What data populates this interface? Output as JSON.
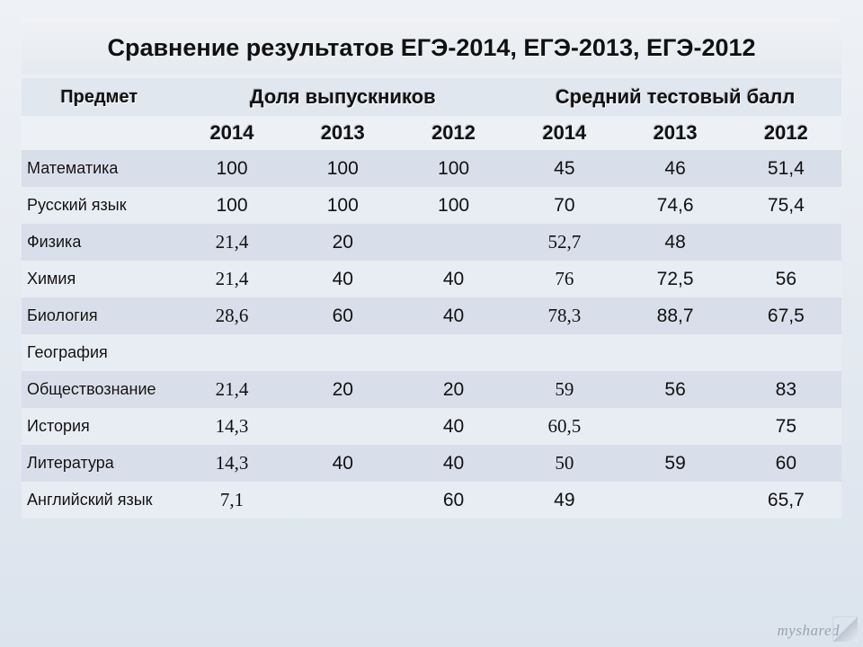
{
  "title": "Сравнение результатов ЕГЭ-2014, ЕГЭ-2013, ЕГЭ-2012",
  "headers": {
    "subject": "Предмет",
    "group1": "Доля выпускников",
    "group2": "Средний тестовый балл",
    "years": [
      "2014",
      "2013",
      "2012",
      "2014",
      "2013",
      "2012"
    ]
  },
  "rows": [
    {
      "subject": "Математика",
      "v": [
        "100",
        "100",
        "100",
        "45",
        "46",
        "51,4"
      ],
      "serif": [
        0,
        0,
        0,
        0,
        0,
        0
      ]
    },
    {
      "subject": "Русский язык",
      "v": [
        "100",
        "100",
        "100",
        "70",
        "74,6",
        "75,4"
      ],
      "serif": [
        0,
        0,
        0,
        0,
        0,
        0
      ]
    },
    {
      "subject": "Физика",
      "v": [
        "21,4",
        "20",
        "",
        "52,7",
        "48",
        ""
      ],
      "serif": [
        1,
        0,
        0,
        1,
        0,
        0
      ]
    },
    {
      "subject": "Химия",
      "v": [
        "21,4",
        "40",
        "40",
        "76",
        "72,5",
        "56"
      ],
      "serif": [
        1,
        0,
        0,
        1,
        0,
        0
      ]
    },
    {
      "subject": "Биология",
      "v": [
        "28,6",
        "60",
        "40",
        "78,3",
        "88,7",
        "67,5"
      ],
      "serif": [
        1,
        0,
        0,
        1,
        0,
        0
      ]
    },
    {
      "subject": "География",
      "v": [
        "",
        "",
        "",
        "",
        "",
        ""
      ],
      "serif": [
        0,
        0,
        0,
        0,
        0,
        0
      ]
    },
    {
      "subject": "Обществознание",
      "v": [
        "21,4",
        "20",
        "20",
        "59",
        "56",
        "83"
      ],
      "serif": [
        1,
        0,
        0,
        1,
        0,
        0
      ]
    },
    {
      "subject": "История",
      "v": [
        "14,3",
        "",
        "40",
        "60,5",
        "",
        "75"
      ],
      "serif": [
        1,
        0,
        0,
        1,
        0,
        0
      ]
    },
    {
      "subject": "Литература",
      "v": [
        "14,3",
        "40",
        "40",
        "50",
        "59",
        "60"
      ],
      "serif": [
        1,
        0,
        0,
        1,
        0,
        0
      ]
    },
    {
      "subject": "Английский язык",
      "v": [
        "7,1",
        "",
        "60",
        "49",
        "",
        "65,7"
      ],
      "serif": [
        1,
        0,
        0,
        0,
        0,
        0
      ]
    }
  ],
  "watermark": "myshared",
  "colors": {
    "row_odd": "#d8deea",
    "row_even": "#e8ecf3",
    "header_group_bg": "#e1e7ef",
    "header_year_bg": "#edf1f6"
  }
}
